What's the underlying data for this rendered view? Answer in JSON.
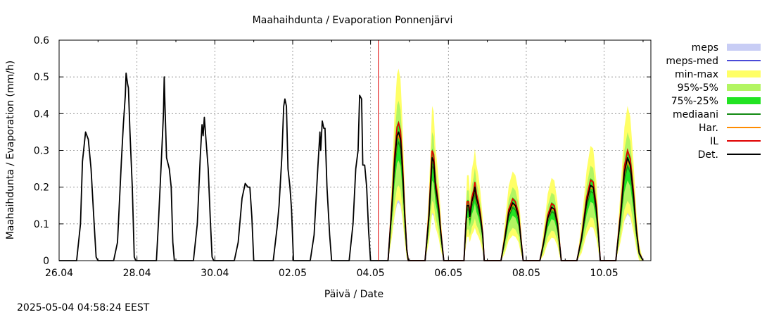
{
  "chart_data": {
    "type": "line",
    "title": "Maahaihdunta / Evaporation  Ponnenjärvi",
    "xlabel": "Päivä / Date",
    "ylabel": "Maahaihdunta / Evaporation (mm/h)",
    "x_unit": "days since 26.04 00:00",
    "xlim": [
      0,
      15.2
    ],
    "ylim": [
      0,
      0.6
    ],
    "yticks": [
      0,
      0.1,
      0.2,
      0.3,
      0.4,
      0.5,
      0.6
    ],
    "ytick_labels": [
      "0",
      "0.1",
      "0.2",
      "0.3",
      "0.4",
      "0.5",
      "0.6"
    ],
    "xticks": [
      0,
      2,
      4,
      6,
      8,
      10,
      12,
      14
    ],
    "xtick_labels": [
      "26.04",
      "28.04",
      "30.04",
      "02.05",
      "04.05",
      "06.05",
      "08.05",
      "10.05"
    ],
    "grid": true,
    "forecast_start": 8.2,
    "legend_position": "right",
    "legend": [
      {
        "label": "meps",
        "kind": "band",
        "color": "#c8cdf5"
      },
      {
        "label": "meps-med",
        "kind": "line",
        "color": "#4a4ad8"
      },
      {
        "label": "min-max",
        "kind": "band",
        "color": "#ffff66"
      },
      {
        "label": "95%-5%",
        "kind": "band",
        "color": "#b2f562"
      },
      {
        "label": "75%-25%",
        "kind": "band",
        "color": "#22e322"
      },
      {
        "label": "mediaani",
        "kind": "line",
        "color": "#138a13"
      },
      {
        "label": "Har.",
        "kind": "line",
        "color": "#ff8c00"
      },
      {
        "label": "IL",
        "kind": "line",
        "color": "#e00000"
      },
      {
        "label": "Det.",
        "kind": "line",
        "color": "#000000"
      }
    ],
    "series": [
      {
        "name": "Det.",
        "values": [
          [
            0,
            0
          ],
          [
            0.45,
            0
          ],
          [
            0.55,
            0.1
          ],
          [
            0.6,
            0.27
          ],
          [
            0.68,
            0.35
          ],
          [
            0.75,
            0.33
          ],
          [
            0.82,
            0.25
          ],
          [
            0.9,
            0.1
          ],
          [
            0.95,
            0.01
          ],
          [
            1.0,
            0
          ],
          [
            1.4,
            0
          ],
          [
            1.5,
            0.05
          ],
          [
            1.6,
            0.27
          ],
          [
            1.65,
            0.37
          ],
          [
            1.7,
            0.45
          ],
          [
            1.72,
            0.51
          ],
          [
            1.76,
            0.48
          ],
          [
            1.78,
            0.47
          ],
          [
            1.82,
            0.35
          ],
          [
            1.88,
            0.2
          ],
          [
            1.93,
            0.01
          ],
          [
            1.97,
            0
          ],
          [
            2.5,
            0
          ],
          [
            2.55,
            0.1
          ],
          [
            2.63,
            0.28
          ],
          [
            2.68,
            0.4
          ],
          [
            2.7,
            0.5
          ],
          [
            2.72,
            0.42
          ],
          [
            2.76,
            0.28
          ],
          [
            2.83,
            0.25
          ],
          [
            2.88,
            0.2
          ],
          [
            2.92,
            0.05
          ],
          [
            2.96,
            0
          ],
          [
            3.45,
            0
          ],
          [
            3.55,
            0.1
          ],
          [
            3.63,
            0.29
          ],
          [
            3.67,
            0.37
          ],
          [
            3.7,
            0.34
          ],
          [
            3.73,
            0.39
          ],
          [
            3.78,
            0.32
          ],
          [
            3.83,
            0.25
          ],
          [
            3.88,
            0.12
          ],
          [
            3.93,
            0.01
          ],
          [
            3.97,
            0
          ],
          [
            4.5,
            0
          ],
          [
            4.6,
            0.05
          ],
          [
            4.7,
            0.17
          ],
          [
            4.78,
            0.21
          ],
          [
            4.85,
            0.2
          ],
          [
            4.9,
            0.2
          ],
          [
            4.95,
            0.12
          ],
          [
            5.0,
            0
          ],
          [
            5.5,
            0
          ],
          [
            5.6,
            0.09
          ],
          [
            5.65,
            0.15
          ],
          [
            5.72,
            0.28
          ],
          [
            5.77,
            0.42
          ],
          [
            5.8,
            0.44
          ],
          [
            5.84,
            0.42
          ],
          [
            5.88,
            0.25
          ],
          [
            5.93,
            0.2
          ],
          [
            5.97,
            0.14
          ],
          [
            6.02,
            0
          ],
          [
            6.45,
            0
          ],
          [
            6.55,
            0.07
          ],
          [
            6.65,
            0.26
          ],
          [
            6.7,
            0.35
          ],
          [
            6.72,
            0.3
          ],
          [
            6.76,
            0.38
          ],
          [
            6.8,
            0.36
          ],
          [
            6.83,
            0.36
          ],
          [
            6.88,
            0.2
          ],
          [
            6.95,
            0.07
          ],
          [
            7.0,
            0
          ],
          [
            7.45,
            0
          ],
          [
            7.55,
            0.1
          ],
          [
            7.62,
            0.25
          ],
          [
            7.68,
            0.3
          ],
          [
            7.72,
            0.45
          ],
          [
            7.77,
            0.44
          ],
          [
            7.8,
            0.26
          ],
          [
            7.85,
            0.26
          ],
          [
            7.9,
            0.2
          ],
          [
            7.95,
            0.08
          ],
          [
            8.0,
            0
          ],
          [
            8.45,
            0
          ],
          [
            8.55,
            0.15
          ],
          [
            8.62,
            0.27
          ],
          [
            8.68,
            0.34
          ],
          [
            8.72,
            0.35
          ],
          [
            8.77,
            0.33
          ],
          [
            8.82,
            0.25
          ],
          [
            8.88,
            0.12
          ],
          [
            8.93,
            0.03
          ],
          [
            8.97,
            0
          ],
          [
            9.4,
            0
          ],
          [
            9.5,
            0.12
          ],
          [
            9.55,
            0.22
          ],
          [
            9.58,
            0.28
          ],
          [
            9.62,
            0.27
          ],
          [
            9.67,
            0.2
          ],
          [
            9.7,
            0.18
          ],
          [
            9.75,
            0.14
          ],
          [
            9.8,
            0.08
          ],
          [
            9.88,
            0
          ],
          [
            10.4,
            0
          ],
          [
            10.45,
            0.1
          ],
          [
            10.48,
            0.15
          ],
          [
            10.52,
            0.15
          ],
          [
            10.55,
            0.12
          ],
          [
            10.6,
            0.16
          ],
          [
            10.65,
            0.18
          ],
          [
            10.68,
            0.2
          ],
          [
            10.72,
            0.17
          ],
          [
            10.77,
            0.15
          ],
          [
            10.82,
            0.12
          ],
          [
            10.88,
            0.07
          ],
          [
            10.92,
            0
          ],
          [
            11.35,
            0
          ],
          [
            11.45,
            0.06
          ],
          [
            11.55,
            0.13
          ],
          [
            11.65,
            0.157
          ],
          [
            11.72,
            0.15
          ],
          [
            11.8,
            0.12
          ],
          [
            11.86,
            0.06
          ],
          [
            11.92,
            0
          ],
          [
            12.35,
            0
          ],
          [
            12.45,
            0.05
          ],
          [
            12.55,
            0.115
          ],
          [
            12.65,
            0.145
          ],
          [
            12.72,
            0.14
          ],
          [
            12.8,
            0.1
          ],
          [
            12.86,
            0.04
          ],
          [
            12.9,
            0
          ],
          [
            13.3,
            0
          ],
          [
            13.42,
            0.06
          ],
          [
            13.55,
            0.16
          ],
          [
            13.65,
            0.205
          ],
          [
            13.72,
            0.2
          ],
          [
            13.8,
            0.14
          ],
          [
            13.86,
            0.06
          ],
          [
            13.9,
            0
          ],
          [
            14.3,
            0
          ],
          [
            14.42,
            0.12
          ],
          [
            14.52,
            0.24
          ],
          [
            14.6,
            0.28
          ],
          [
            14.67,
            0.26
          ],
          [
            14.75,
            0.18
          ],
          [
            14.83,
            0.08
          ],
          [
            14.9,
            0.02
          ],
          [
            15.0,
            0
          ]
        ]
      }
    ]
  },
  "footer": {
    "timestamp": "2025-05-04 04:58:24 EEST"
  }
}
